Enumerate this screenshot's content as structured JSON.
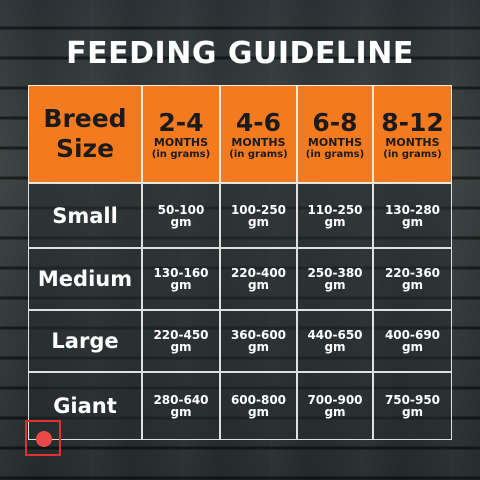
{
  "header": {
    "title": "FEEDING GUIDELINE"
  },
  "table": {
    "corner": [
      "Breed",
      "Size"
    ],
    "columns": [
      {
        "range": "2-4",
        "unit": "MONTHS",
        "note": "(in grams)"
      },
      {
        "range": "4-6",
        "unit": "MONTHS",
        "note": "(in grams)"
      },
      {
        "range": "6-8",
        "unit": "MONTHS",
        "note": "(in grams)"
      },
      {
        "range": "8-12",
        "unit": "MONTHS",
        "note": "(in grams)"
      }
    ],
    "rows": [
      {
        "breed": "Small",
        "cells": [
          [
            "50-100",
            "gm"
          ],
          [
            "100-250",
            "gm"
          ],
          [
            "110-250",
            "gm"
          ],
          [
            "130-280",
            "gm"
          ]
        ]
      },
      {
        "breed": "Medium",
        "cells": [
          [
            "130-160",
            "gm"
          ],
          [
            "220-400",
            "gm"
          ],
          [
            "250-380",
            "gm"
          ],
          [
            "220-360",
            "gm"
          ]
        ]
      },
      {
        "breed": "Large",
        "cells": [
          [
            "220-450",
            "gm"
          ],
          [
            "360-600",
            "gm"
          ],
          [
            "440-650",
            "gm"
          ],
          [
            "400-690",
            "gm"
          ]
        ]
      },
      {
        "breed": "Giant",
        "cells": [
          [
            "280-640",
            "gm"
          ],
          [
            "600-800",
            "gm"
          ],
          [
            "700-900",
            "gm"
          ],
          [
            "750-950",
            "gm"
          ]
        ]
      }
    ]
  }
}
